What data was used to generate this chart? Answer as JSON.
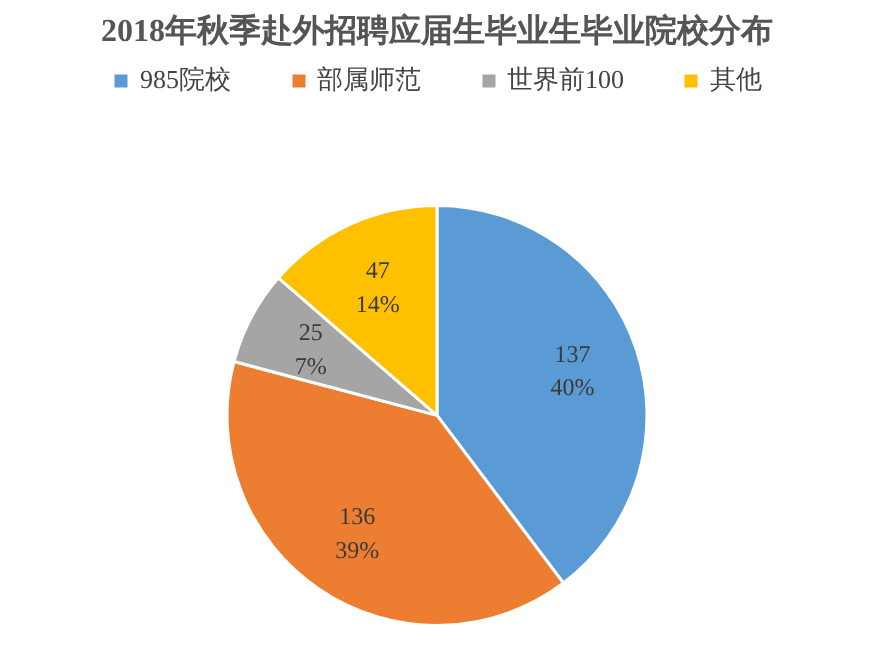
{
  "chart_data": {
    "type": "pie",
    "title": "2018年秋季赴外招聘应届生毕业生毕业院校分布",
    "categories": [
      "985院校",
      "部属师范",
      "世界前100",
      "其他"
    ],
    "values": [
      137,
      136,
      25,
      47
    ],
    "colors": [
      "#5b9bd5",
      "#ed7d31",
      "#a5a5a5",
      "#ffc000"
    ],
    "value_labels": [
      "137\n40%",
      "136\n39%",
      "25\n7%",
      "47\n14%"
    ],
    "legend": "top"
  }
}
